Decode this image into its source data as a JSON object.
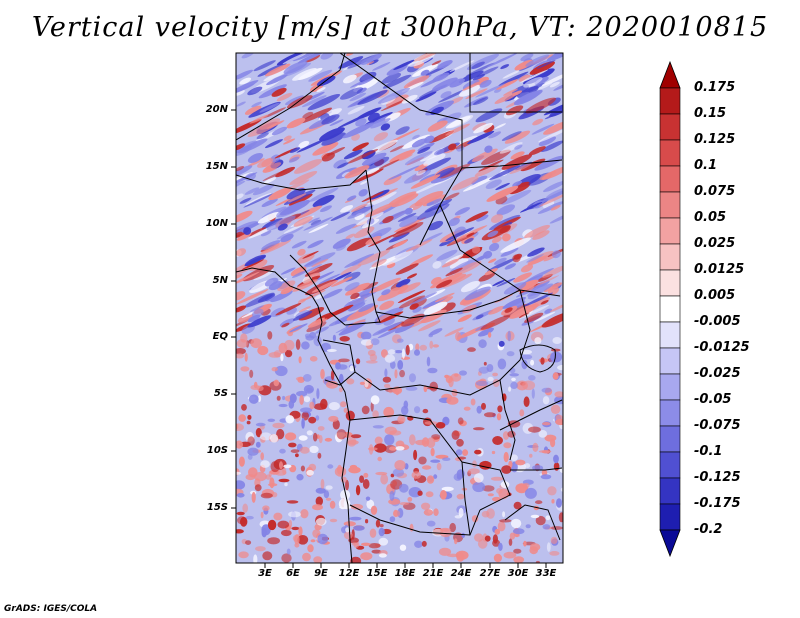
{
  "title": "Vertical velocity [m/s] at 300hPa, VT: 2020010815",
  "credit": "GrADS: IGES/COLA",
  "latitude_labels": [
    "20N",
    "15N",
    "10N",
    "5N",
    "EQ",
    "5S",
    "10S",
    "15S"
  ],
  "longitude_labels": [
    "3E",
    "6E",
    "9E",
    "12E",
    "15E",
    "18E",
    "21E",
    "24E",
    "27E",
    "30E",
    "33E"
  ],
  "colorbar": {
    "labels": [
      "0.175",
      "0.15",
      "0.125",
      "0.1",
      "0.075",
      "0.05",
      "0.025",
      "0.0125",
      "0.005",
      "-0.005",
      "-0.0125",
      "-0.025",
      "-0.05",
      "-0.075",
      "-0.1",
      "-0.125",
      "-0.175",
      "-0.2"
    ],
    "colors": [
      "#a00000",
      "#b41a1a",
      "#c83232",
      "#d84b4b",
      "#e46868",
      "#ec8585",
      "#f2a2a2",
      "#f7c2c2",
      "#fbe1e1",
      "#ffffff",
      "#e2e2fb",
      "#c6c6f6",
      "#a8a8ef",
      "#8c8ce8",
      "#6e6ede",
      "#5050d2",
      "#3434c2",
      "#1e1eb0",
      "#0a0a96"
    ]
  },
  "field_colors": {
    "background": "#bcc0ee",
    "strong_sink": "#3c3ccc",
    "sink": "#8484e6",
    "neutral": "#f4f4ff",
    "lift": "#f08a8a",
    "strong_lift": "#c42a2a",
    "boundary": "#000000"
  }
}
